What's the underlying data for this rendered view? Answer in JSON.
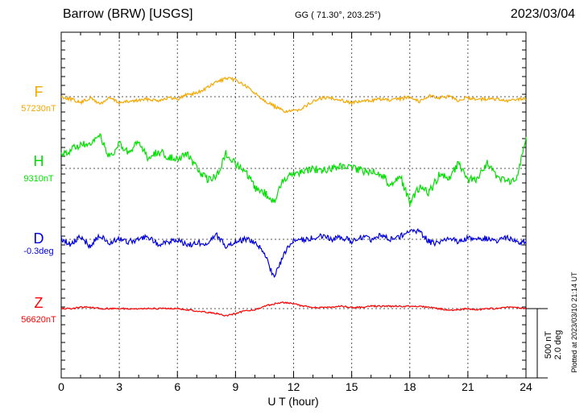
{
  "header": {
    "title": "Barrow (BRW)  [USGS]",
    "coords": "GG ( 71.30°, 203.25°)",
    "date": "2023/03/04"
  },
  "chart_data": {
    "type": "line",
    "xlabel": "U T (hour)",
    "xlim": [
      0,
      24
    ],
    "x_ticks": [
      0,
      3,
      6,
      9,
      12,
      15,
      18,
      21,
      24
    ],
    "tick_labels": [
      "0",
      "3",
      "6",
      "9",
      "12",
      "15",
      "18",
      "21",
      "24"
    ],
    "grid": true,
    "scale_bar": {
      "top": "500 nT",
      "bottom": "2.0 deg"
    },
    "footnote": "Plotted at 2023/03/10 21:14 UT",
    "series": [
      {
        "name": "F",
        "baseline": "57230nT",
        "color": "#f5a800",
        "points": [
          [
            0,
            0
          ],
          [
            0.5,
            -10
          ],
          [
            1,
            -25
          ],
          [
            1.5,
            -5
          ],
          [
            2,
            -30
          ],
          [
            2.5,
            -5
          ],
          [
            3,
            -25
          ],
          [
            3.5,
            -20
          ],
          [
            4,
            -15
          ],
          [
            4.5,
            -10
          ],
          [
            5,
            -15
          ],
          [
            5.5,
            -5
          ],
          [
            6,
            -10
          ],
          [
            6.5,
            10
          ],
          [
            7,
            15
          ],
          [
            7.5,
            35
          ],
          [
            8,
            60
          ],
          [
            8.5,
            75
          ],
          [
            9,
            70
          ],
          [
            9.5,
            45
          ],
          [
            10,
            15
          ],
          [
            10.5,
            -15
          ],
          [
            11,
            -40
          ],
          [
            11.5,
            -60
          ],
          [
            12,
            -60
          ],
          [
            12.5,
            -45
          ],
          [
            13,
            -20
          ],
          [
            13.5,
            -5
          ],
          [
            14,
            -5
          ],
          [
            14.5,
            -15
          ],
          [
            15,
            -25
          ],
          [
            15.5,
            -20
          ],
          [
            16,
            -15
          ],
          [
            16.5,
            -10
          ],
          [
            17,
            -15
          ],
          [
            17.5,
            -10
          ],
          [
            18,
            0
          ],
          [
            18.5,
            -20
          ],
          [
            19,
            5
          ],
          [
            19.5,
            -5
          ],
          [
            20,
            0
          ],
          [
            20.5,
            -15
          ],
          [
            21,
            -5
          ],
          [
            21.5,
            -10
          ],
          [
            22,
            -10
          ],
          [
            22.5,
            -10
          ],
          [
            23,
            -20
          ],
          [
            23.5,
            -10
          ],
          [
            24,
            -10
          ]
        ]
      },
      {
        "name": "H",
        "baseline": "9310nT",
        "color": "#00e000",
        "points": [
          [
            0,
            60
          ],
          [
            0.5,
            75
          ],
          [
            1,
            100
          ],
          [
            1.5,
            90
          ],
          [
            2,
            140
          ],
          [
            2.5,
            40
          ],
          [
            3,
            100
          ],
          [
            3.5,
            60
          ],
          [
            4,
            110
          ],
          [
            4.5,
            40
          ],
          [
            5,
            70
          ],
          [
            5.5,
            50
          ],
          [
            6,
            40
          ],
          [
            6.5,
            60
          ],
          [
            7,
            0
          ],
          [
            7.5,
            -45
          ],
          [
            8,
            -35
          ],
          [
            8.5,
            60
          ],
          [
            9,
            20
          ],
          [
            9.5,
            -15
          ],
          [
            10,
            -80
          ],
          [
            10.5,
            -100
          ],
          [
            11,
            -140
          ],
          [
            11.5,
            -40
          ],
          [
            12,
            -20
          ],
          [
            12.5,
            -10
          ],
          [
            13,
            0
          ],
          [
            13.5,
            -10
          ],
          [
            14,
            0
          ],
          [
            14.5,
            10
          ],
          [
            15,
            0
          ],
          [
            15.5,
            -10
          ],
          [
            16,
            -10
          ],
          [
            16.5,
            -20
          ],
          [
            17,
            -70
          ],
          [
            17.5,
            -30
          ],
          [
            18,
            -140
          ],
          [
            18.5,
            -80
          ],
          [
            19,
            -100
          ],
          [
            19.5,
            -30
          ],
          [
            20,
            -40
          ],
          [
            20.5,
            20
          ],
          [
            21,
            -50
          ],
          [
            21.5,
            -40
          ],
          [
            22,
            20
          ],
          [
            22.5,
            -30
          ],
          [
            23,
            -60
          ],
          [
            23.5,
            -50
          ],
          [
            24,
            130
          ]
        ]
      },
      {
        "name": "D",
        "baseline": "-0.3deg",
        "color": "#0000e0",
        "points": [
          [
            0,
            0
          ],
          [
            0.5,
            -20
          ],
          [
            1,
            10
          ],
          [
            1.5,
            -30
          ],
          [
            2,
            20
          ],
          [
            2.5,
            -20
          ],
          [
            3,
            5
          ],
          [
            3.5,
            -10
          ],
          [
            4,
            0
          ],
          [
            4.5,
            10
          ],
          [
            5,
            -20
          ],
          [
            5.5,
            -10
          ],
          [
            6,
            -5
          ],
          [
            6.5,
            -25
          ],
          [
            7,
            -15
          ],
          [
            7.5,
            -15
          ],
          [
            8,
            20
          ],
          [
            8.5,
            -30
          ],
          [
            9,
            -10
          ],
          [
            9.5,
            0
          ],
          [
            10,
            -10
          ],
          [
            10.5,
            -60
          ],
          [
            11,
            -160
          ],
          [
            11.5,
            -60
          ],
          [
            12,
            -5
          ],
          [
            12.5,
            0
          ],
          [
            13,
            5
          ],
          [
            13.5,
            15
          ],
          [
            14,
            0
          ],
          [
            14.5,
            10
          ],
          [
            15,
            -10
          ],
          [
            15.5,
            10
          ],
          [
            16,
            0
          ],
          [
            16.5,
            20
          ],
          [
            17,
            0
          ],
          [
            17.5,
            10
          ],
          [
            18,
            40
          ],
          [
            18.5,
            30
          ],
          [
            19,
            -10
          ],
          [
            19.5,
            -20
          ],
          [
            20,
            5
          ],
          [
            20.5,
            -10
          ],
          [
            21,
            5
          ],
          [
            21.5,
            0
          ],
          [
            22,
            5
          ],
          [
            22.5,
            -5
          ],
          [
            23,
            10
          ],
          [
            23.5,
            -10
          ],
          [
            24,
            -10
          ]
        ]
      },
      {
        "name": "Z",
        "baseline": "56620nT",
        "color": "#ff0000",
        "points": [
          [
            0,
            0
          ],
          [
            0.5,
            0
          ],
          [
            1,
            5
          ],
          [
            1.5,
            5
          ],
          [
            2,
            0
          ],
          [
            2.5,
            0
          ],
          [
            3,
            0
          ],
          [
            3.5,
            0
          ],
          [
            4,
            0
          ],
          [
            4.5,
            0
          ],
          [
            5,
            0
          ],
          [
            5.5,
            0
          ],
          [
            6,
            0
          ],
          [
            6.5,
            -5
          ],
          [
            7,
            -10
          ],
          [
            7.5,
            -15
          ],
          [
            8,
            -20
          ],
          [
            8.5,
            -30
          ],
          [
            9,
            -20
          ],
          [
            9.5,
            -10
          ],
          [
            10,
            -5
          ],
          [
            10.5,
            10
          ],
          [
            11,
            20
          ],
          [
            11.5,
            25
          ],
          [
            12,
            20
          ],
          [
            12.5,
            10
          ],
          [
            13,
            5
          ],
          [
            13.5,
            5
          ],
          [
            14,
            5
          ],
          [
            14.5,
            10
          ],
          [
            15,
            5
          ],
          [
            15.5,
            5
          ],
          [
            16,
            10
          ],
          [
            16.5,
            10
          ],
          [
            17,
            10
          ],
          [
            17.5,
            10
          ],
          [
            18,
            10
          ],
          [
            18.5,
            10
          ],
          [
            19,
            5
          ],
          [
            19.5,
            0
          ],
          [
            20,
            -5
          ],
          [
            20.5,
            -5
          ],
          [
            21,
            0
          ],
          [
            21.5,
            -5
          ],
          [
            22,
            0
          ],
          [
            22.5,
            0
          ],
          [
            23,
            5
          ],
          [
            23.5,
            5
          ],
          [
            24,
            0
          ]
        ]
      }
    ]
  }
}
